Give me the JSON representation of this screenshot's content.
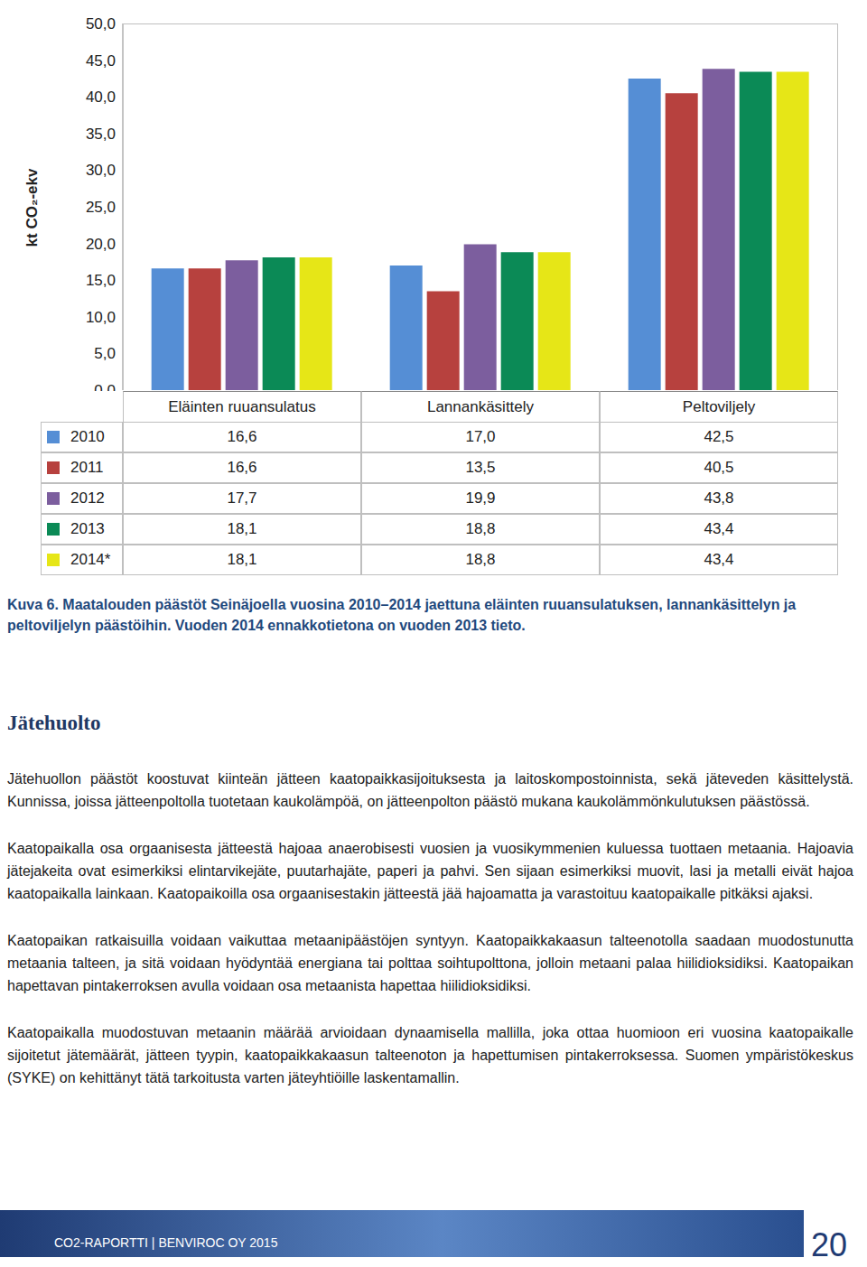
{
  "chart_data": {
    "type": "bar",
    "y_label": "kt CO₂-ekv",
    "categories": [
      "Eläinten ruuansulatus",
      "Lannankäsittely",
      "Peltoviljely"
    ],
    "series": [
      {
        "name": "2010",
        "color": "#558ed5",
        "values": [
          16.6,
          17.0,
          42.5
        ],
        "value_labels": [
          "16,6",
          "17,0",
          "42,5"
        ]
      },
      {
        "name": "2011",
        "color": "#b7413e",
        "values": [
          16.6,
          13.5,
          40.5
        ],
        "value_labels": [
          "16,6",
          "13,5",
          "40,5"
        ]
      },
      {
        "name": "2012",
        "color": "#7c5e9e",
        "values": [
          17.7,
          19.9,
          43.8
        ],
        "value_labels": [
          "17,7",
          "19,9",
          "43,8"
        ]
      },
      {
        "name": "2013",
        "color": "#0b8a56",
        "values": [
          18.1,
          18.8,
          43.4
        ],
        "value_labels": [
          "18,1",
          "18,8",
          "43,4"
        ]
      },
      {
        "name": "2014*",
        "color": "#e6e617",
        "values": [
          18.1,
          18.8,
          43.4
        ],
        "value_labels": [
          "18,1",
          "18,8",
          "43,4"
        ]
      }
    ],
    "ylim": [
      0,
      50
    ],
    "yticks": [
      {
        "value": 0,
        "label": "0,0"
      },
      {
        "value": 5,
        "label": "5,0"
      },
      {
        "value": 10,
        "label": "10,0"
      },
      {
        "value": 15,
        "label": "15,0"
      },
      {
        "value": 20,
        "label": "20,0"
      },
      {
        "value": 25,
        "label": "25,0"
      },
      {
        "value": 30,
        "label": "30,0"
      },
      {
        "value": 35,
        "label": "35,0"
      },
      {
        "value": 40,
        "label": "40,0"
      },
      {
        "value": 45,
        "label": "45,0"
      },
      {
        "value": 50,
        "label": "50,0"
      }
    ],
    "grid": false
  },
  "caption": "Kuva 6. Maatalouden päästöt Seinäjoella vuosina 2010–2014 jaettuna eläinten ruuansulatuksen, lannankäsittelyn ja peltoviljelyn päästöihin. Vuoden 2014 ennakkotietona on vuoden 2013 tieto.",
  "heading": "Jätehuolto",
  "paragraphs": [
    "Jätehuollon päästöt koostuvat kiinteän jätteen kaatopaikkasijoituksesta ja laitoskompostoinnista, sekä jäteveden käsittelystä. Kunnissa, joissa jätteenpoltolla tuotetaan kaukolämpöä, on jätteenpolton päästö mukana kaukolämmönkulutuksen päästössä.",
    "Kaatopaikalla osa orgaanisesta jätteestä hajoaa anaerobisesti vuosien ja vuosikymmenien kuluessa tuottaen metaania. Hajoavia jätejakeita ovat esimerkiksi elintarvikejäte, puutarhajäte, paperi ja pahvi. Sen sijaan esimerkiksi muovit, lasi ja metalli eivät hajoa kaatopaikalla lainkaan. Kaatopaikoilla osa orgaanisestakin jätteestä jää hajoamatta ja varastoituu kaatopaikalle pitkäksi ajaksi.",
    "Kaatopaikan ratkaisuilla voidaan vaikuttaa metaanipäästöjen syntyyn. Kaatopaikkakaasun talteenotolla saadaan muodostunutta metaania talteen, ja sitä voidaan hyödyntää energiana tai polttaa soihtupolttona, jolloin metaani palaa hiilidioksidiksi. Kaatopaikan hapettavan pintakerroksen avulla voidaan osa metaanista hapettaa hiilidioksidiksi.",
    "Kaatopaikalla muodostuvan metaanin määrää arvioidaan dynaamisella mallilla, joka ottaa huomioon eri vuosina kaatopaikalle sijoitetut jätemäärät, jätteen tyypin, kaatopaikkakaasun talteenoton ja hapettumisen pintakerroksessa. Suomen ympäristökeskus (SYKE) on kehittänyt tätä tarkoitusta varten jäteyhtiöille laskentamallin."
  ],
  "footer": {
    "text": "CO2-RAPORTTI | BENVIROC OY 2015",
    "page": "20"
  }
}
